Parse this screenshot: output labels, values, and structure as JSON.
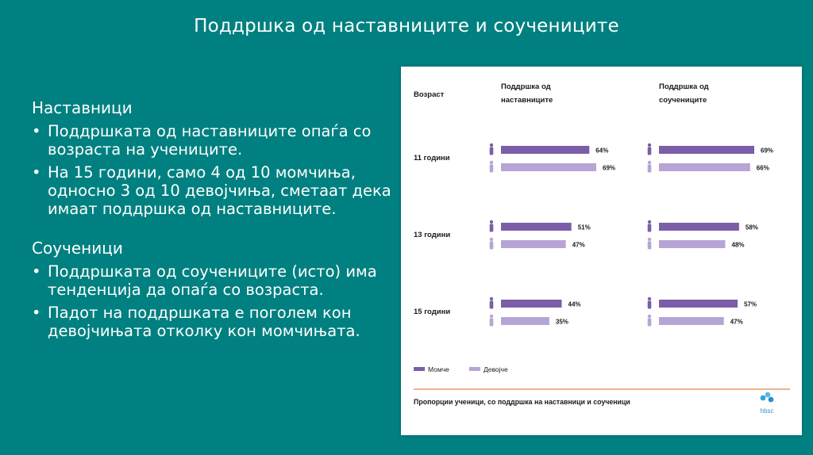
{
  "slide": {
    "title": "Поддршка од наставниците и соучениците",
    "sections": [
      {
        "heading": "Наставници",
        "bullets": [
          "Поддршката од наставниците опаѓа со возраста на учениците.",
          " На 15 години, само 4 од 10 момчиња, односно 3 од 10 девојчиња, сметаат дека имаат поддршка од наставниците."
        ]
      },
      {
        "heading": "Соученици",
        "bullets": [
          "Поддршката од соучениците (исто) има тенденција да опаѓа со возраста.",
          "Падот на поддршката е поголем кон девојчињата отколку кон момчињата."
        ]
      }
    ]
  },
  "chart_data": {
    "type": "bar",
    "age_header": "Возраст",
    "groups": [
      {
        "title_lines": [
          "Поддршка од",
          "наставниците"
        ]
      },
      {
        "title_lines": [
          "Поддршка од",
          "соучениците"
        ]
      }
    ],
    "categories": [
      "11 години",
      "13 години",
      "15 години"
    ],
    "series": [
      {
        "name": "Момче",
        "color": "#7b5ea7",
        "icon": "boy-icon",
        "teachers": [
          64,
          51,
          44
        ],
        "peers": [
          69,
          58,
          57
        ]
      },
      {
        "name": "Девојче",
        "color": "#b7a4d6",
        "icon": "girl-icon",
        "teachers": [
          69,
          47,
          35
        ],
        "peers": [
          66,
          48,
          47
        ]
      }
    ],
    "value_suffix": "%",
    "footnote": "Пропорции ученици, со поддршка на наставници и соученици",
    "logo_text": "hbsc",
    "divider_color": "#e8864a"
  }
}
